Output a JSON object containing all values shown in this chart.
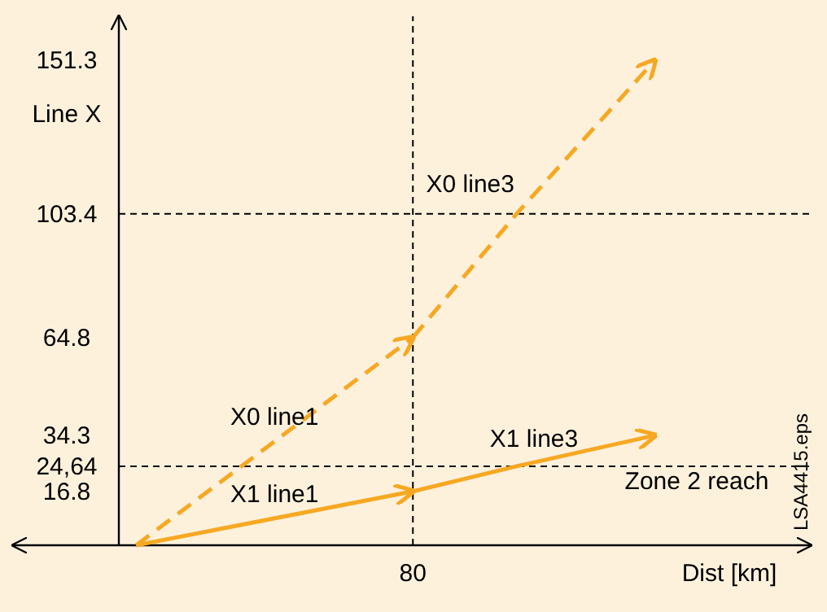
{
  "chart_data": {
    "type": "line",
    "xlabel": "Dist [km]",
    "ylabel": "Line X",
    "categories": [
      null,
      null,
      null,
      null,
      null,
      null,
      null,
      null,
      "80",
      null,
      null,
      null,
      null,
      null,
      null,
      null,
      null,
      null,
      null,
      null
    ],
    "ylim": [
      0,
      165
    ],
    "yticks": [
      {
        "value": 16.8,
        "label": "16.8"
      },
      {
        "value": 24.64,
        "label": "24,64"
      },
      {
        "value": 34.3,
        "label": "34.3"
      },
      {
        "value": 64.8,
        "label": "64.8"
      },
      {
        "value": 103.4,
        "label": "103.4"
      },
      {
        "value": 151.3,
        "label": "151.3"
      }
    ],
    "series": [
      {
        "name": "X0 line1",
        "color": "#f7a823",
        "line_style": "dashed",
        "values": [
          0,
          null,
          null,
          null,
          null,
          null,
          null,
          null,
          64.8,
          null,
          null,
          null,
          null,
          null,
          null,
          null,
          null,
          null,
          null,
          null
        ]
      },
      {
        "name": "X0 line3",
        "color": "#f7a823",
        "line_style": "dashed",
        "values": [
          null,
          null,
          null,
          null,
          null,
          null,
          null,
          null,
          64.8,
          null,
          null,
          103.4,
          null,
          null,
          null,
          151.3,
          null,
          null,
          null,
          null
        ]
      },
      {
        "name": "X1 line1",
        "color": "#f7a823",
        "line_style": "solid",
        "values": [
          0,
          null,
          null,
          null,
          null,
          null,
          null,
          null,
          16.8,
          null,
          null,
          null,
          null,
          null,
          null,
          null,
          null,
          null,
          null,
          null
        ]
      },
      {
        "name": "X1 line3",
        "color": "#f7a823",
        "line_style": "solid",
        "values": [
          null,
          null,
          null,
          null,
          null,
          null,
          null,
          null,
          16.8,
          null,
          null,
          24.64,
          null,
          null,
          null,
          34.3,
          null,
          null,
          null,
          null
        ]
      }
    ],
    "ref_lines": [
      {
        "axis": "y",
        "value": 24.64,
        "label": "Zone 2 reach",
        "color": "#000000",
        "line_style": "dashed"
      },
      {
        "axis": "y",
        "value": 103.4,
        "label": null,
        "color": "#000000",
        "line_style": "dashed"
      },
      {
        "axis": "x",
        "value": "80",
        "label": null,
        "color": "#000000",
        "line_style": "dashed"
      }
    ],
    "annotations": [
      "LSA4415.eps"
    ]
  }
}
